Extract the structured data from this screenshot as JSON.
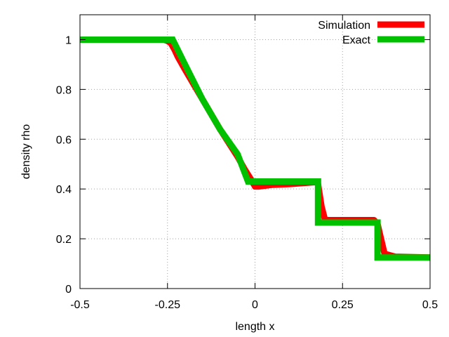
{
  "chart_data": {
    "type": "line",
    "title": "",
    "xlabel": "length x",
    "ylabel": "density rho",
    "xlim": [
      -0.5,
      0.5
    ],
    "ylim": [
      0,
      1.1
    ],
    "xticks": [
      -0.5,
      -0.25,
      0,
      0.25,
      0.5
    ],
    "xtick_labels": [
      "-0.5",
      "-0.25",
      "0",
      "0.25",
      "0.5"
    ],
    "yticks": [
      0,
      0.2,
      0.4,
      0.6,
      0.8,
      1
    ],
    "ytick_labels": [
      "0",
      "0.2",
      "0.4",
      "0.6",
      "0.8",
      "1"
    ],
    "grid": true,
    "legend_position": "top-right",
    "series": [
      {
        "name": "Simulation",
        "color": "#ff0000",
        "x": [
          -0.5,
          -0.26,
          -0.25,
          -0.24,
          -0.23,
          -0.22,
          -0.2,
          -0.15,
          -0.1,
          -0.05,
          -0.03,
          -0.01,
          0,
          0.01,
          0.05,
          0.1,
          0.15,
          0.175,
          0.18,
          0.19,
          0.2,
          0.25,
          0.3,
          0.34,
          0.35,
          0.36,
          0.37,
          0.4,
          0.5
        ],
        "y": [
          1.0,
          1.0,
          0.995,
          0.985,
          0.96,
          0.93,
          0.88,
          0.76,
          0.64,
          0.53,
          0.48,
          0.435,
          0.41,
          0.41,
          0.417,
          0.42,
          0.425,
          0.428,
          0.42,
          0.33,
          0.275,
          0.275,
          0.275,
          0.275,
          0.26,
          0.2,
          0.14,
          0.128,
          0.125
        ]
      },
      {
        "name": "Exact",
        "color": "#00c000",
        "x": [
          -0.5,
          -0.235,
          -0.2,
          -0.15,
          -0.1,
          -0.05,
          -0.02,
          0.18,
          0.18,
          0.35,
          0.35,
          0.5
        ],
        "y": [
          1.0,
          1.0,
          0.9,
          0.76,
          0.64,
          0.54,
          0.43,
          0.43,
          0.265,
          0.265,
          0.125,
          0.125
        ]
      }
    ]
  }
}
